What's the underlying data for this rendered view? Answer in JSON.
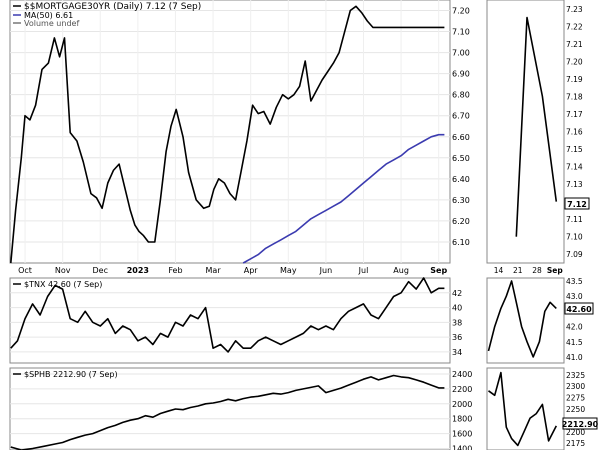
{
  "chart_data": [
    {
      "type": "line",
      "panel": "main",
      "legend": [
        {
          "label": "$$MORTGAGE30YR (Daily) 7.12 (7 Sep)",
          "color": "#000000"
        },
        {
          "label": "MA(50) 6.61",
          "color": "#3b3bb0"
        },
        {
          "label": "Volume undef",
          "color": "#777777"
        }
      ],
      "y_ticks": [
        "6.10",
        "6.20",
        "6.30",
        "6.40",
        "6.50",
        "6.60",
        "6.70",
        "6.80",
        "6.90",
        "7.00",
        "7.10",
        "7.20"
      ],
      "ylim": [
        6.0,
        7.25
      ],
      "x_ticks": [
        "Oct",
        "Nov",
        "Dec",
        "2023",
        "Feb",
        "Mar",
        "Apr",
        "May",
        "Jun",
        "Jul",
        "Aug",
        "Sep"
      ],
      "x_tick_positions": [
        1.0,
        2.0,
        3.0,
        4.0,
        5.0,
        6.0,
        7.0,
        8.0,
        9.0,
        10.0,
        11.0,
        12.0
      ],
      "xlim": [
        0.6,
        12.3
      ],
      "series": [
        {
          "key": "price",
          "color": "#000000",
          "x": [
            0.62,
            0.75,
            0.9,
            1.0,
            1.13,
            1.28,
            1.45,
            1.62,
            1.78,
            1.92,
            2.05,
            2.2,
            2.38,
            2.55,
            2.75,
            2.9,
            3.05,
            3.2,
            3.35,
            3.5,
            3.65,
            3.8,
            3.92,
            4.03,
            4.15,
            4.28,
            4.45,
            4.6,
            4.75,
            4.88,
            5.02,
            5.2,
            5.35,
            5.55,
            5.75,
            5.9,
            6.02,
            6.15,
            6.3,
            6.45,
            6.6,
            6.75,
            6.9,
            7.05,
            7.2,
            7.35,
            7.52,
            7.68,
            7.85,
            8.0,
            8.15,
            8.3,
            8.45,
            8.6,
            8.75,
            8.9,
            9.05,
            9.2,
            9.35,
            9.5,
            9.65,
            9.8,
            9.95,
            10.1,
            10.25,
            10.4,
            10.55,
            10.72,
            10.88,
            11.05,
            11.2,
            11.35,
            11.5,
            11.65,
            11.82,
            12.0,
            12.15
          ],
          "y": [
            6.0,
            6.25,
            6.5,
            6.7,
            6.68,
            6.75,
            6.92,
            6.95,
            7.07,
            6.98,
            7.07,
            6.62,
            6.58,
            6.48,
            6.33,
            6.31,
            6.26,
            6.38,
            6.44,
            6.47,
            6.36,
            6.25,
            6.18,
            6.15,
            6.13,
            6.1,
            6.1,
            6.3,
            6.53,
            6.65,
            6.73,
            6.6,
            6.43,
            6.3,
            6.26,
            6.27,
            6.35,
            6.4,
            6.38,
            6.33,
            6.3,
            6.44,
            6.58,
            6.75,
            6.71,
            6.72,
            6.66,
            6.74,
            6.8,
            6.78,
            6.8,
            6.84,
            6.96,
            6.77,
            6.82,
            6.87,
            6.91,
            6.95,
            7.0,
            7.1,
            7.2,
            7.22,
            7.19,
            7.15,
            7.12,
            7.12,
            7.12,
            7.12,
            7.12,
            7.12,
            7.12,
            7.12,
            7.12,
            7.12,
            7.12,
            7.12,
            7.12
          ]
        },
        {
          "key": "ma50",
          "color": "#3b3bb0",
          "x": [
            6.8,
            7.0,
            7.2,
            7.4,
            7.6,
            7.8,
            8.0,
            8.2,
            8.4,
            8.6,
            8.8,
            9.0,
            9.2,
            9.4,
            9.6,
            9.8,
            10.0,
            10.2,
            10.4,
            10.6,
            10.8,
            11.0,
            11.2,
            11.4,
            11.6,
            11.8,
            12.0,
            12.15
          ],
          "y": [
            6.0,
            6.02,
            6.04,
            6.07,
            6.09,
            6.11,
            6.13,
            6.15,
            6.18,
            6.21,
            6.23,
            6.25,
            6.27,
            6.29,
            6.32,
            6.35,
            6.38,
            6.41,
            6.44,
            6.47,
            6.49,
            6.51,
            6.54,
            6.56,
            6.58,
            6.6,
            6.61,
            6.61
          ]
        }
      ]
    },
    {
      "type": "line",
      "panel": "main-zoom",
      "y_ticks": [
        "7.09",
        "7.10",
        "7.11",
        "7.12",
        "7.13",
        "7.14",
        "7.15",
        "7.16",
        "7.17",
        "7.18",
        "7.19",
        "7.20",
        "7.21",
        "7.22",
        "7.23"
      ],
      "ylim": [
        7.085,
        7.235
      ],
      "x_ticks": [
        "14",
        "21",
        "28",
        "Sep"
      ],
      "x_tick_positions": [
        0.15,
        0.4,
        0.65,
        0.88
      ],
      "xlim": [
        0.0,
        1.0
      ],
      "last_value_label": "7.12",
      "series": [
        {
          "key": "zoom",
          "color": "#000000",
          "x": [
            0.38,
            0.52,
            0.72,
            0.9
          ],
          "y": [
            7.1,
            7.225,
            7.18,
            7.12
          ]
        }
      ]
    },
    {
      "type": "line",
      "panel": "tnx",
      "legend": [
        {
          "label": "$TNX 42.60 (7 Sep)",
          "color": "#000000"
        }
      ],
      "y_ticks": [
        "34",
        "36",
        "38",
        "40",
        "42"
      ],
      "ylim": [
        32.5,
        44.0
      ],
      "xlim": [
        0.6,
        12.3
      ],
      "series": [
        {
          "key": "tnx",
          "color": "#000000",
          "x": [
            0.62,
            0.8,
            1.0,
            1.2,
            1.4,
            1.6,
            1.8,
            2.0,
            2.2,
            2.4,
            2.6,
            2.8,
            3.0,
            3.2,
            3.4,
            3.6,
            3.8,
            4.0,
            4.2,
            4.4,
            4.6,
            4.8,
            5.0,
            5.2,
            5.4,
            5.6,
            5.8,
            6.0,
            6.2,
            6.4,
            6.6,
            6.8,
            7.0,
            7.2,
            7.4,
            7.6,
            7.8,
            8.0,
            8.2,
            8.4,
            8.6,
            8.8,
            9.0,
            9.2,
            9.4,
            9.6,
            9.8,
            10.0,
            10.2,
            10.4,
            10.6,
            10.8,
            11.0,
            11.2,
            11.4,
            11.6,
            11.8,
            12.0,
            12.15
          ],
          "y": [
            34.5,
            35.5,
            38.5,
            40.5,
            39.0,
            41.5,
            43.0,
            42.5,
            38.5,
            38.0,
            39.5,
            38.0,
            37.5,
            38.5,
            36.5,
            37.5,
            37.0,
            35.5,
            36.0,
            35.0,
            36.5,
            36.0,
            38.0,
            37.5,
            39.0,
            38.5,
            40.0,
            34.5,
            35.0,
            34.0,
            35.5,
            34.5,
            34.5,
            35.5,
            36.0,
            35.5,
            35.0,
            35.5,
            36.0,
            36.5,
            37.5,
            37.0,
            37.5,
            37.0,
            38.5,
            39.5,
            40.0,
            40.5,
            39.0,
            38.5,
            40.0,
            41.5,
            42.0,
            43.5,
            42.5,
            44.0,
            42.0,
            42.6,
            42.6
          ]
        }
      ]
    },
    {
      "type": "line",
      "panel": "tnx-zoom",
      "y_ticks": [
        "41.0",
        "41.5",
        "42.0",
        "42.5",
        "43.0",
        "43.5"
      ],
      "ylim": [
        40.8,
        43.6
      ],
      "xlim": [
        0.0,
        1.0
      ],
      "last_value_label": "42.60",
      "series": [
        {
          "key": "tnx_zoom",
          "color": "#000000",
          "x": [
            0.02,
            0.1,
            0.18,
            0.25,
            0.32,
            0.38,
            0.45,
            0.52,
            0.6,
            0.68,
            0.75,
            0.82,
            0.9
          ],
          "y": [
            41.2,
            42.0,
            42.6,
            43.0,
            43.5,
            42.8,
            42.0,
            41.5,
            41.0,
            41.5,
            42.5,
            42.8,
            42.6
          ]
        }
      ]
    },
    {
      "type": "line",
      "panel": "sphb",
      "legend": [
        {
          "label": "$SPHB 2212.90 (7 Sep)",
          "color": "#000000"
        }
      ],
      "y_ticks": [
        "1400",
        "1600",
        "1800",
        "2000",
        "2200",
        "2400"
      ],
      "ylim": [
        1380,
        2480
      ],
      "xlim": [
        0.6,
        12.3
      ],
      "series": [
        {
          "key": "sphb",
          "color": "#000000",
          "x": [
            0.62,
            0.9,
            1.2,
            1.5,
            1.8,
            2.0,
            2.2,
            2.4,
            2.6,
            2.8,
            3.0,
            3.2,
            3.4,
            3.6,
            3.8,
            4.0,
            4.2,
            4.4,
            4.6,
            4.8,
            5.0,
            5.2,
            5.4,
            5.6,
            5.8,
            6.0,
            6.2,
            6.4,
            6.6,
            6.8,
            7.0,
            7.2,
            7.4,
            7.6,
            7.8,
            8.0,
            8.2,
            8.4,
            8.6,
            8.8,
            9.0,
            9.2,
            9.4,
            9.6,
            9.8,
            10.0,
            10.2,
            10.4,
            10.6,
            10.8,
            11.0,
            11.2,
            11.4,
            11.6,
            11.8,
            12.0,
            12.15
          ],
          "y": [
            1420,
            1380,
            1400,
            1430,
            1460,
            1480,
            1520,
            1550,
            1580,
            1600,
            1640,
            1680,
            1710,
            1750,
            1780,
            1800,
            1840,
            1820,
            1870,
            1900,
            1930,
            1920,
            1950,
            1970,
            2000,
            2010,
            2030,
            2060,
            2040,
            2070,
            2090,
            2100,
            2120,
            2140,
            2130,
            2150,
            2180,
            2200,
            2220,
            2240,
            2150,
            2180,
            2210,
            2250,
            2290,
            2330,
            2360,
            2320,
            2350,
            2380,
            2360,
            2350,
            2320,
            2290,
            2250,
            2212.9,
            2212.9
          ]
        }
      ]
    },
    {
      "type": "line",
      "panel": "sphb-zoom",
      "y_ticks": [
        "2175",
        "2200",
        "2225",
        "2250",
        "2275",
        "2300",
        "2325"
      ],
      "ylim": [
        2160,
        2340
      ],
      "xlim": [
        0.0,
        1.0
      ],
      "last_value_label": "2212.90",
      "series": [
        {
          "key": "sphb_zoom",
          "color": "#000000",
          "x": [
            0.02,
            0.1,
            0.18,
            0.25,
            0.32,
            0.4,
            0.48,
            0.56,
            0.64,
            0.72,
            0.8,
            0.9
          ],
          "y": [
            2290,
            2280,
            2330,
            2210,
            2185,
            2170,
            2200,
            2230,
            2240,
            2260,
            2180,
            2212.9
          ]
        }
      ]
    }
  ]
}
